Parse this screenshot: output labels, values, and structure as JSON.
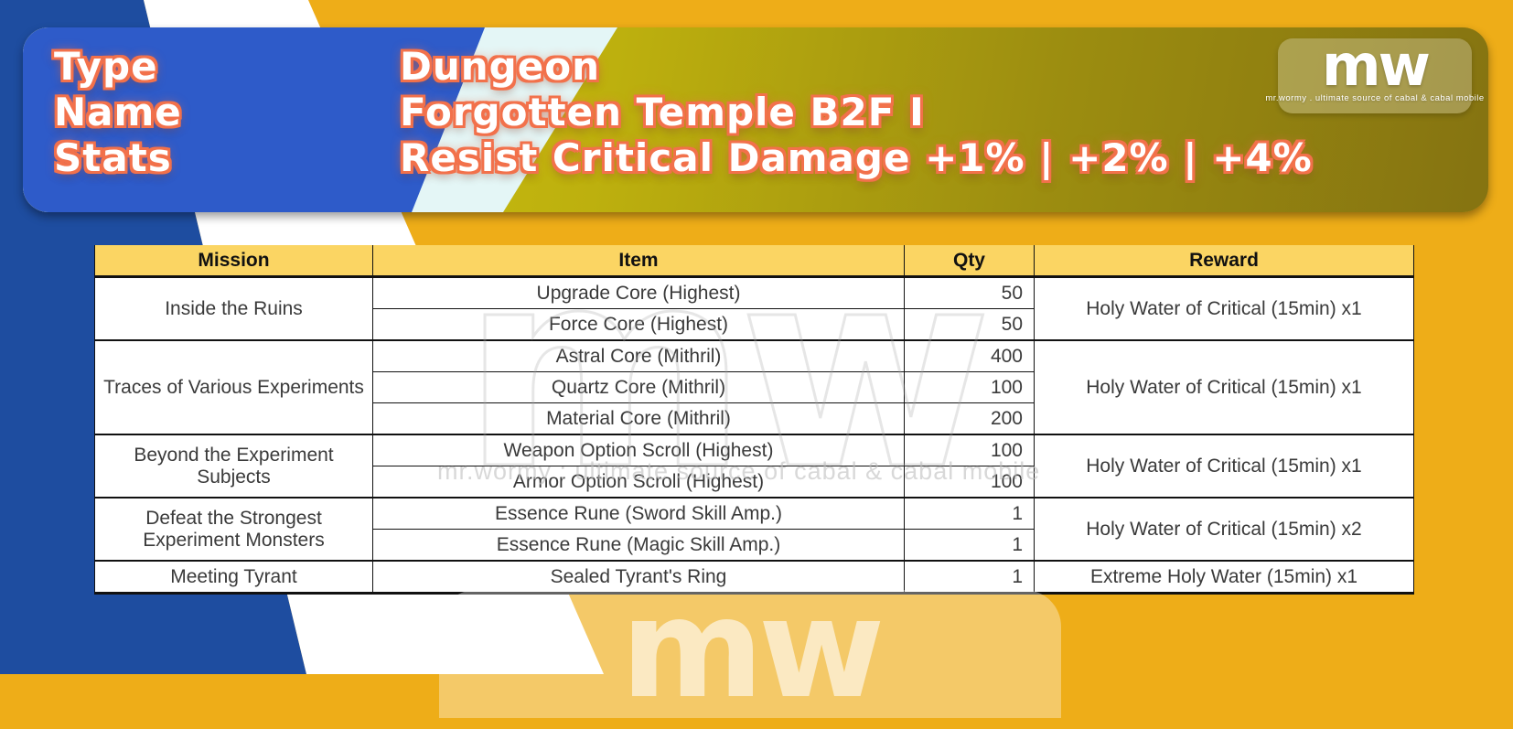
{
  "header_card": {
    "fields": [
      {
        "label": "Type",
        "value": "Dungeon"
      },
      {
        "label": "Name",
        "value": "Forgotten Temple B2F I"
      },
      {
        "label": "Stats",
        "value": "Resist Critical Damage +1% | +2% | +4%"
      }
    ],
    "logo": {
      "text": "mw",
      "tagline": "mr.wormy . ultimate source of cabal & cabal mobile"
    }
  },
  "watermark": {
    "logo_text": "mw",
    "tagline": "mr.wormy : ultimate source of cabal & cabal mobile",
    "bottom_logo_text": "mw"
  },
  "colors": {
    "background_gold": "#EEAD18",
    "band_blue": "#1E4DA0",
    "card_blue": "#2E5BC9",
    "card_light_cyan": "#E4F6F6",
    "card_olive_light": "#D6CB0B",
    "card_olive_dark": "#857311",
    "table_header_gold": "#FBD563",
    "text_outline_orange": "#F2714B"
  },
  "table": {
    "columns": [
      "Mission",
      "Item",
      "Qty",
      "Reward"
    ],
    "groups": [
      {
        "mission": "Inside the Ruins",
        "items": [
          {
            "item": "Upgrade Core (Highest)",
            "qty": "50"
          },
          {
            "item": "Force Core (Highest)",
            "qty": "50"
          }
        ],
        "reward": "Holy Water of Critical (15min) x1"
      },
      {
        "mission": "Traces of Various Experiments",
        "items": [
          {
            "item": "Astral Core (Mithril)",
            "qty": "400"
          },
          {
            "item": "Quartz Core (Mithril)",
            "qty": "100"
          },
          {
            "item": "Material Core (Mithril)",
            "qty": "200"
          }
        ],
        "reward": "Holy Water of Critical (15min) x1"
      },
      {
        "mission": "Beyond the Experiment Subjects",
        "items": [
          {
            "item": "Weapon Option Scroll (Highest)",
            "qty": "100"
          },
          {
            "item": "Armor Option Scroll (Highest)",
            "qty": "100"
          }
        ],
        "reward": "Holy Water of Critical (15min) x1"
      },
      {
        "mission": "Defeat the Strongest Experiment Monsters",
        "items": [
          {
            "item": "Essence Rune (Sword Skill Amp.)",
            "qty": "1"
          },
          {
            "item": "Essence Rune (Magic Skill Amp.)",
            "qty": "1"
          }
        ],
        "reward": "Holy Water of Critical (15min) x2"
      },
      {
        "mission": "Meeting Tyrant",
        "items": [
          {
            "item": "Sealed Tyrant's Ring",
            "qty": "1"
          }
        ],
        "reward": "Extreme Holy Water (15min) x1"
      }
    ]
  }
}
